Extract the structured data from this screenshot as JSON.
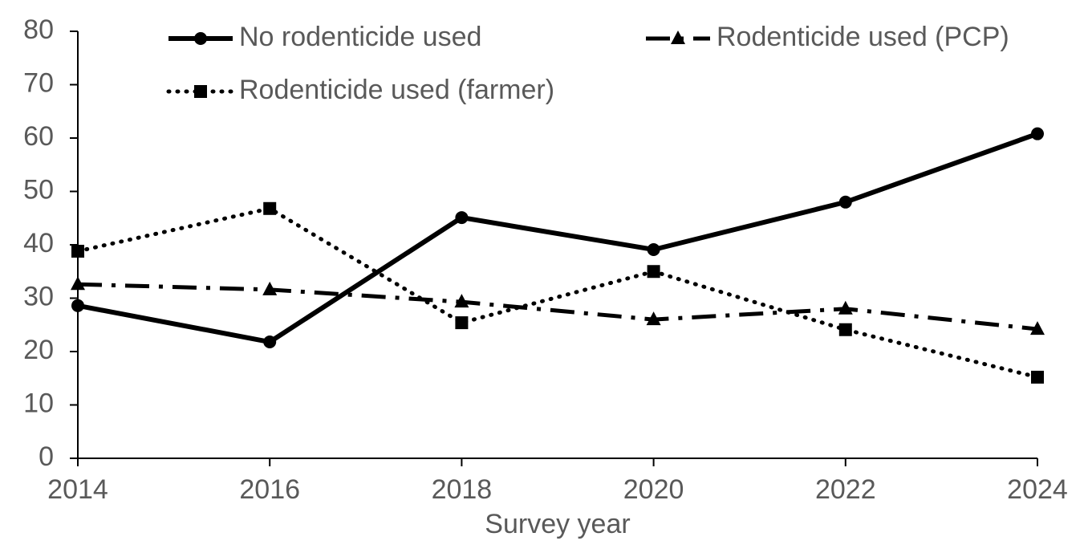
{
  "chart_data": {
    "type": "line",
    "x_label": "Survey year",
    "x": [
      2014,
      2016,
      2018,
      2020,
      2022,
      2024
    ],
    "xlim": [
      2014,
      2024
    ],
    "xticks": [
      2014,
      2016,
      2018,
      2020,
      2022,
      2024
    ],
    "ylim": [
      0,
      80
    ],
    "yticks": [
      0,
      10,
      20,
      30,
      40,
      50,
      60,
      70,
      80
    ],
    "grid": false,
    "legend": "top",
    "series": [
      {
        "name": "No rodenticide used",
        "color": "#000000",
        "dash": "solid",
        "marker": "circle",
        "values": [
          28.6,
          21.8,
          45.1,
          39.1,
          48.0,
          60.8
        ]
      },
      {
        "name": "Rodenticide used (PCP)",
        "color": "#000000",
        "dash": "dashdot",
        "marker": "triangle",
        "values": [
          32.6,
          31.6,
          29.3,
          26.0,
          28.0,
          24.2
        ]
      },
      {
        "name": "Rodenticide used (farmer)",
        "color": "#000000",
        "dash": "dotted",
        "marker": "square",
        "values": [
          38.8,
          46.8,
          25.4,
          35.0,
          24.1,
          15.2
        ]
      }
    ]
  }
}
